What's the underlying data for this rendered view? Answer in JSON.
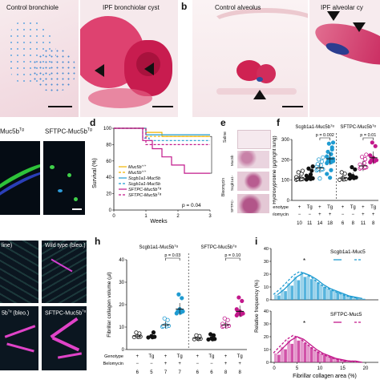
{
  "panel_letters": {
    "b": "b",
    "d": "d",
    "e": "e",
    "f": "f",
    "h": "h",
    "i": "i"
  },
  "images": {
    "control_bronchiole": "Control bronchiole",
    "ipf_bronchiolar_cyst": "IPF bronchiolar cyst",
    "control_alveolus": "Control alveolus",
    "ipf_alveolar_cyst": "IPF alveolar cy",
    "muc5b_tg": "Muc5b",
    "sftpc_muc5b_tg": "SFTPC-Muc5b",
    "tg_sup": "Tg",
    "saline_bleo_1": "line)",
    "wild_type_bleo": "Wild type (bleo.)",
    "muc5b_bleo": "5b",
    "muc5b_bleo_tg_suffix": " (bleo.)",
    "sftpc_muc5b_bleo": "SFTPC-Muc5b",
    "sftpc_muc5b_bleo_suffix": " (bleo.)"
  },
  "panel_e": {
    "saline": "Saline",
    "bleomycin": "Bleomycin",
    "rows": [
      "Muc5b",
      "Scgb1a1-",
      "SFTPC-"
    ]
  },
  "chart_data": [
    {
      "id": "d",
      "type": "line",
      "title": "",
      "xlabel": "Weeks",
      "ylabel": "Survival (%)",
      "x_ticks": [
        "0",
        "1",
        "2",
        "3"
      ],
      "y_ticks": [
        "0",
        "20",
        "40",
        "60",
        "80",
        "100"
      ],
      "ylim": [
        0,
        100
      ],
      "xlim": [
        0,
        3
      ],
      "annotation": "p = 0.04",
      "legend": [
        "Muc5b",
        "Muc5b",
        "Scgb1a1-Muc5b",
        "Scgb1a1-Muc5b",
        "SFTPC-Muc5b",
        "SFTPC-Muc5b"
      ],
      "legend_sups": [
        "+/+",
        "+/+",
        "",
        "",
        "Tg",
        "Tg"
      ],
      "series": [
        {
          "color": "#f0b400",
          "dash": false,
          "x": [
            0,
            0.9,
            1.0,
            1.4,
            1.5,
            3.0
          ],
          "y": [
            100,
            100,
            95,
            95,
            90,
            90
          ]
        },
        {
          "color": "#f0b400",
          "dash": true,
          "x": [
            0,
            1.0,
            3.0
          ],
          "y": [
            100,
            90,
            90
          ]
        },
        {
          "color": "#1f9bd1",
          "dash": false,
          "x": [
            0,
            1.0,
            3.0
          ],
          "y": [
            100,
            92,
            92
          ]
        },
        {
          "color": "#1f9bd1",
          "dash": true,
          "x": [
            0,
            0.9,
            1.1,
            3.0
          ],
          "y": [
            100,
            88,
            85,
            85
          ]
        },
        {
          "color": "#c2188b",
          "dash": false,
          "x": [
            0,
            0.9,
            1.2,
            1.5,
            1.8,
            2.2,
            3.0
          ],
          "y": [
            100,
            85,
            75,
            65,
            55,
            45,
            45
          ]
        },
        {
          "color": "#c2188b",
          "dash": true,
          "x": [
            0,
            1.0,
            3.0
          ],
          "y": [
            100,
            80,
            80
          ]
        }
      ]
    },
    {
      "id": "f",
      "type": "scatter",
      "ylabel": "Hydroxyproline (μg/right lung)",
      "group_labels": [
        "Scgb1a1-Muc5b",
        "SFTPC-Muc5b"
      ],
      "group_sups": [
        "Tg",
        "Tg"
      ],
      "annotations": [
        "p = 0.002",
        "p = 0.01"
      ],
      "y_ticks": [
        "0",
        "100",
        "200",
        "300"
      ],
      "ylim": [
        0,
        300
      ],
      "row_labels": [
        "Genotype",
        "Belomycin",
        "n"
      ],
      "genotype": [
        "+",
        "Tg",
        "+",
        "Tg",
        "+",
        "Tg",
        "+",
        "Tg"
      ],
      "bleomycin": [
        "−",
        "−",
        "+",
        "+",
        "−",
        "−",
        "+",
        "+"
      ],
      "n": [
        "10",
        "11",
        "14",
        "18",
        "6",
        "8",
        "11",
        "8"
      ],
      "means": [
        110,
        115,
        160,
        205,
        110,
        120,
        170,
        210
      ]
    },
    {
      "id": "h",
      "type": "scatter",
      "ylabel": "Fibrillar collagen volume (µl)",
      "group_labels": [
        "Scgb1a1-Muc5b",
        "SFTPC-Muc5b"
      ],
      "group_sups": [
        "Tg",
        "Tg"
      ],
      "annotations": [
        "p = 0.03",
        "p = 0.10"
      ],
      "y_ticks": [
        "0",
        "10",
        "20",
        "30",
        "40"
      ],
      "ylim": [
        0,
        40
      ],
      "row_labels": [
        "Genotype",
        "Belomycin"
      ],
      "genotype": [
        "+",
        "Tg",
        "+",
        "Tg",
        "+",
        "Tg",
        "+",
        "Tg"
      ],
      "bleomycin": [
        "−",
        "−",
        "+",
        "+",
        "−",
        "−",
        "+",
        "+"
      ],
      "n": [
        "6",
        "5",
        "7",
        "7",
        "6",
        "6",
        "8",
        "8"
      ],
      "means": [
        6,
        6,
        11,
        18,
        5,
        5,
        11,
        17
      ]
    },
    {
      "id": "i",
      "type": "bar",
      "xlabel": "Fibrillar collagen area (%)",
      "ylabel": "Relative frequency (%)",
      "x_ticks": [
        "0",
        "5",
        "10",
        "15",
        "20"
      ],
      "y_ticks": [
        "0",
        "10",
        "20",
        "30",
        "40"
      ],
      "ylim": [
        0,
        40
      ],
      "legends": [
        "Scgb1a1-Muc5",
        "SFTPC-Muc5"
      ],
      "top_bars": [
        4,
        8,
        13,
        18,
        21,
        19,
        16,
        12,
        9,
        7,
        5,
        3,
        2,
        1
      ],
      "bottom_bars": [
        7,
        12,
        17,
        20,
        18,
        14,
        10,
        7,
        5,
        3,
        2,
        1,
        1,
        0
      ]
    }
  ]
}
